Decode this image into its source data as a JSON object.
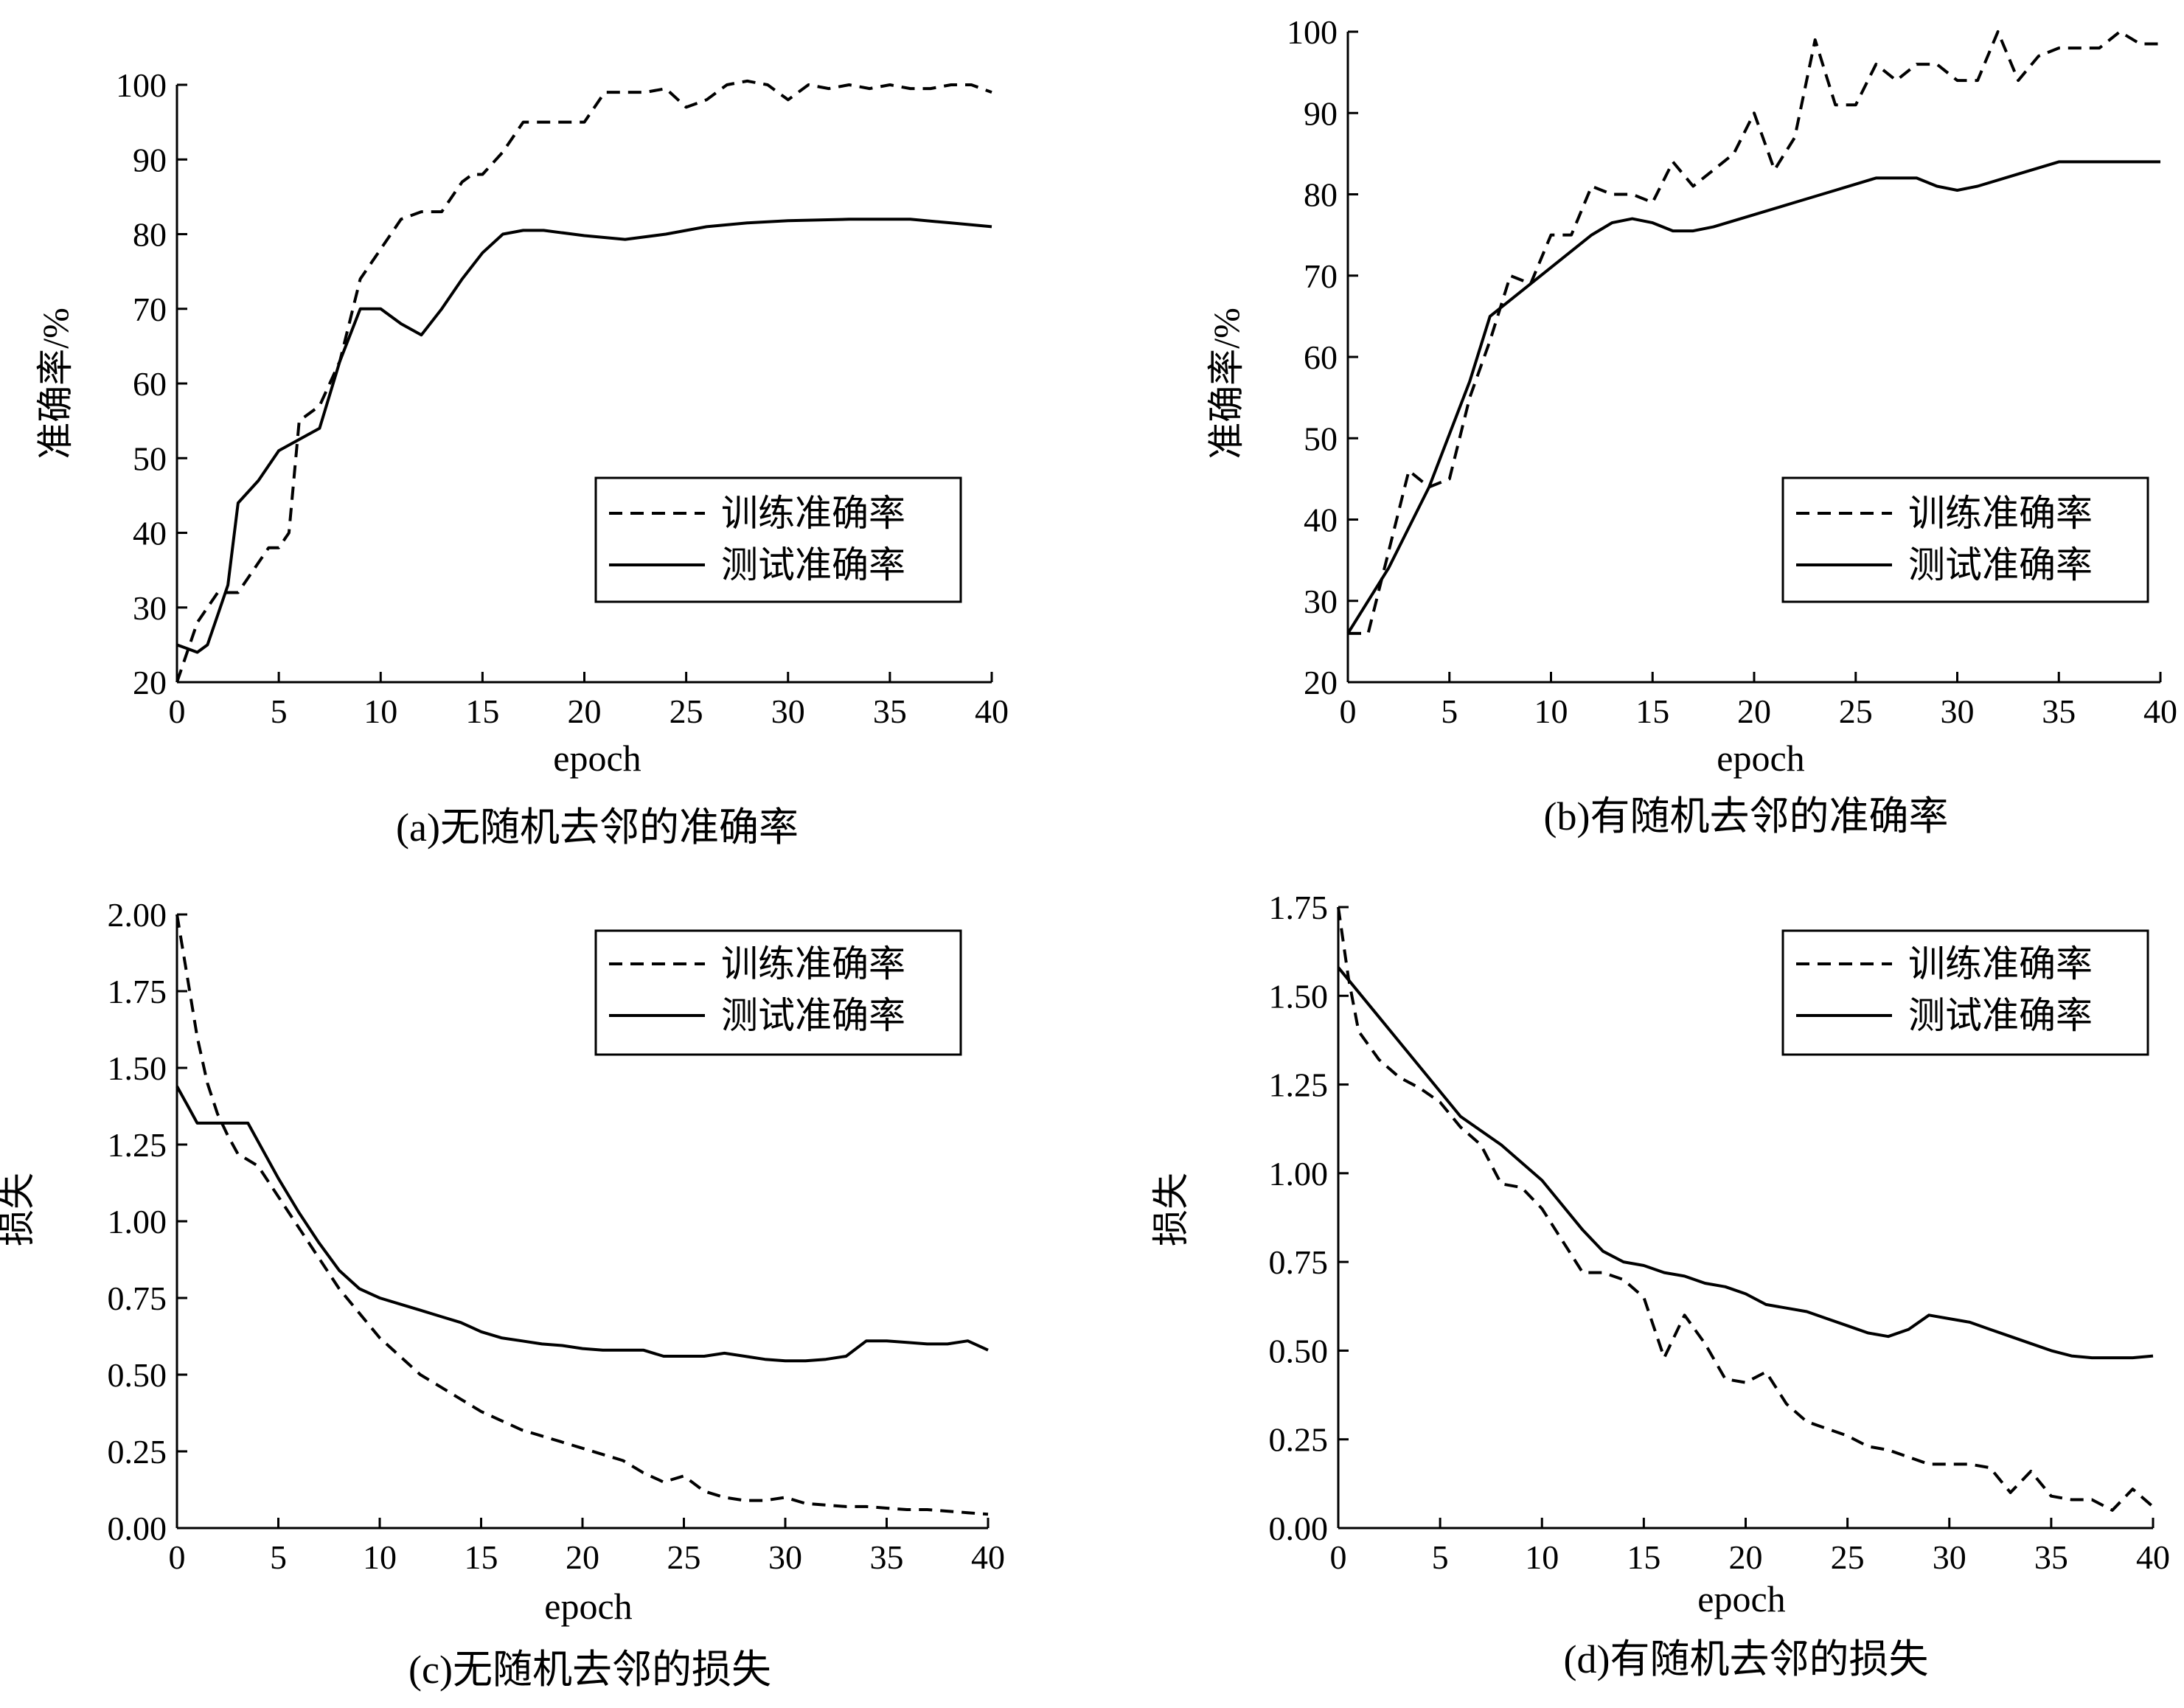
{
  "chart_data": [
    {
      "type": "line",
      "caption": "(a)无随机去邻的准确率",
      "xlabel": "epoch",
      "ylabel": "准确率/%",
      "xlim": [
        0,
        40
      ],
      "ylim": [
        20,
        100
      ],
      "xticks": [
        "0",
        "5",
        "10",
        "15",
        "20",
        "25",
        "30",
        "35",
        "40"
      ],
      "yticks": [
        "20",
        "30",
        "40",
        "50",
        "60",
        "70",
        "80",
        "90",
        "100"
      ],
      "legend_position": "middle-right",
      "series": [
        {
          "name": "训练准确率",
          "style": "dashed",
          "x": [
            0,
            1,
            2,
            3,
            4,
            4.5,
            5,
            5.5,
            6,
            7,
            8,
            9,
            10,
            11,
            12,
            13,
            14,
            14.5,
            15,
            16,
            17,
            18,
            19,
            20,
            21,
            22,
            23,
            24,
            25,
            26,
            27,
            28,
            29,
            30,
            31,
            32,
            33,
            34,
            35,
            36,
            37,
            38,
            39,
            40
          ],
          "y": [
            20,
            28,
            32,
            32,
            36,
            38,
            38,
            40,
            55,
            57,
            63,
            74,
            78,
            82,
            83,
            83,
            87,
            88,
            88,
            91,
            95,
            95,
            95,
            95,
            99,
            99,
            99,
            99.5,
            97,
            98,
            100,
            100.5,
            100,
            98,
            100,
            99.5,
            100,
            99.5,
            100,
            99.5,
            99.5,
            100,
            100,
            99
          ]
        },
        {
          "name": "测试准确率",
          "style": "solid",
          "x": [
            0,
            0.5,
            1,
            1.5,
            2,
            2.5,
            3,
            4,
            5,
            6,
            7,
            8,
            9,
            10,
            11,
            12,
            13,
            14,
            15,
            16,
            17,
            18,
            20,
            22,
            24,
            26,
            28,
            30,
            33,
            36,
            38,
            40
          ],
          "y": [
            25,
            24.5,
            24,
            25,
            29,
            33,
            44,
            47,
            51,
            52.5,
            54,
            63,
            70,
            70,
            68,
            66.5,
            70,
            74,
            77.5,
            80,
            80.5,
            80.5,
            79.8,
            79.3,
            80,
            81,
            81.5,
            81.8,
            82,
            82,
            81.5,
            81
          ]
        }
      ]
    },
    {
      "type": "line",
      "caption": "(b)有随机去邻的准确率",
      "xlabel": "epoch",
      "ylabel": "准确率/%",
      "xlim": [
        0,
        40
      ],
      "ylim": [
        20,
        100
      ],
      "xticks": [
        "0",
        "5",
        "10",
        "15",
        "20",
        "25",
        "30",
        "35",
        "40"
      ],
      "yticks": [
        "20",
        "30",
        "40",
        "50",
        "60",
        "70",
        "80",
        "90",
        "100"
      ],
      "legend_position": "middle-right",
      "series": [
        {
          "name": "训练准确率",
          "style": "dashed",
          "x": [
            0,
            1,
            2,
            3,
            4,
            5,
            6,
            7,
            8,
            9,
            10,
            11,
            12,
            13,
            14,
            15,
            16,
            17,
            18,
            19,
            20,
            21,
            22,
            23,
            24,
            25,
            26,
            27,
            28,
            29,
            30,
            31,
            32,
            33,
            34,
            35,
            36,
            37,
            38,
            39,
            40
          ],
          "y": [
            26,
            26,
            36,
            46,
            44,
            45,
            55,
            62,
            70,
            69,
            75,
            75,
            81,
            80,
            80,
            79,
            84,
            81,
            83,
            85,
            90,
            83,
            87,
            99,
            91,
            91,
            96,
            94,
            96,
            96,
            94,
            94,
            100,
            94,
            97,
            98,
            98,
            98,
            100,
            98.5,
            98.5
          ]
        },
        {
          "name": "测试准确率",
          "style": "solid",
          "x": [
            0,
            2,
            4,
            6,
            7,
            8,
            10,
            12,
            13,
            14,
            15,
            16,
            17,
            18,
            20,
            22,
            24,
            26,
            27,
            28,
            29,
            30,
            31,
            33,
            35,
            36,
            38,
            40
          ],
          "y": [
            26,
            34,
            44,
            57,
            65,
            67,
            71,
            75,
            76.5,
            77,
            76.5,
            75.5,
            75.5,
            76,
            77.5,
            79,
            80.5,
            82,
            82,
            82,
            81,
            80.5,
            81,
            82.5,
            84,
            84,
            84,
            84
          ]
        }
      ]
    },
    {
      "type": "line",
      "caption": "(c)无随机去邻的损失",
      "xlabel": "epoch",
      "ylabel": "损失",
      "xlim": [
        0,
        40
      ],
      "ylim": [
        0,
        2.0
      ],
      "xticks": [
        "0",
        "5",
        "10",
        "15",
        "20",
        "25",
        "30",
        "35",
        "40"
      ],
      "yticks": [
        "0.00",
        "0.25",
        "0.50",
        "0.75",
        "1.00",
        "1.25",
        "1.50",
        "1.75",
        "2.00"
      ],
      "legend_position": "top-right",
      "series": [
        {
          "name": "训练准确率",
          "style": "dashed",
          "x": [
            0,
            0.5,
            1,
            1.5,
            2,
            2.5,
            3,
            4,
            5,
            6,
            7,
            8,
            9,
            10,
            11,
            12,
            13,
            14,
            15,
            16,
            17,
            18,
            19,
            20,
            21,
            22,
            23,
            24,
            25,
            26,
            27,
            28,
            29,
            30,
            31,
            32,
            33,
            34,
            35,
            36,
            37,
            38,
            39,
            40
          ],
          "y": [
            2.0,
            1.8,
            1.6,
            1.45,
            1.35,
            1.28,
            1.22,
            1.18,
            1.08,
            0.98,
            0.88,
            0.78,
            0.7,
            0.62,
            0.56,
            0.5,
            0.46,
            0.42,
            0.38,
            0.35,
            0.32,
            0.3,
            0.28,
            0.26,
            0.24,
            0.22,
            0.18,
            0.15,
            0.17,
            0.12,
            0.1,
            0.09,
            0.09,
            0.1,
            0.08,
            0.075,
            0.07,
            0.07,
            0.065,
            0.06,
            0.06,
            0.055,
            0.05,
            0.045
          ]
        },
        {
          "name": "测试准确率",
          "style": "solid",
          "x": [
            0,
            0.5,
            1,
            2,
            3,
            3.5,
            4,
            5,
            6,
            7,
            8,
            9,
            10,
            11,
            12,
            13,
            14,
            15,
            16,
            17,
            18,
            19,
            20,
            21,
            22,
            23,
            24,
            25,
            26,
            27,
            28,
            29,
            30,
            31,
            32,
            33,
            34,
            35,
            36,
            37,
            38,
            39,
            40
          ],
          "y": [
            1.44,
            1.38,
            1.32,
            1.32,
            1.32,
            1.32,
            1.26,
            1.14,
            1.03,
            0.93,
            0.84,
            0.78,
            0.75,
            0.73,
            0.71,
            0.69,
            0.67,
            0.64,
            0.62,
            0.61,
            0.6,
            0.595,
            0.585,
            0.58,
            0.58,
            0.58,
            0.56,
            0.56,
            0.56,
            0.57,
            0.56,
            0.55,
            0.545,
            0.545,
            0.55,
            0.56,
            0.61,
            0.61,
            0.605,
            0.6,
            0.6,
            0.61,
            0.58
          ]
        }
      ]
    },
    {
      "type": "line",
      "caption": "(d)有随机去邻的损失",
      "xlabel": "epoch",
      "ylabel": "损失",
      "xlim": [
        0,
        40
      ],
      "ylim": [
        0,
        1.75
      ],
      "xticks": [
        "0",
        "5",
        "10",
        "15",
        "20",
        "25",
        "30",
        "35",
        "40"
      ],
      "yticks": [
        "0.00",
        "0.25",
        "0.50",
        "0.75",
        "1.00",
        "1.25",
        "1.50",
        "1.75"
      ],
      "legend_position": "top-right",
      "series": [
        {
          "name": "训练准确率",
          "style": "dashed",
          "x": [
            0,
            0.5,
            1,
            2,
            3,
            4,
            5,
            6,
            7,
            8,
            9,
            10,
            11,
            12,
            13,
            14,
            15,
            16,
            17,
            18,
            19,
            20,
            21,
            22,
            23,
            24,
            25,
            26,
            27,
            28,
            29,
            30,
            31,
            32,
            33,
            34,
            35,
            36,
            37,
            38,
            39,
            40
          ],
          "y": [
            1.75,
            1.55,
            1.4,
            1.32,
            1.27,
            1.24,
            1.2,
            1.13,
            1.08,
            0.97,
            0.96,
            0.9,
            0.81,
            0.72,
            0.72,
            0.7,
            0.65,
            0.48,
            0.6,
            0.52,
            0.42,
            0.41,
            0.44,
            0.35,
            0.3,
            0.28,
            0.26,
            0.23,
            0.22,
            0.2,
            0.18,
            0.18,
            0.18,
            0.17,
            0.1,
            0.16,
            0.09,
            0.08,
            0.08,
            0.05,
            0.11,
            0.06
          ]
        },
        {
          "name": "测试准确率",
          "style": "solid",
          "x": [
            0,
            2,
            4,
            6,
            8,
            10,
            12,
            13,
            14,
            15,
            16,
            17,
            18,
            19,
            20,
            21,
            22,
            23,
            24,
            25,
            26,
            27,
            28,
            29,
            30,
            31,
            32,
            33,
            34,
            35,
            36,
            37,
            38,
            39,
            40
          ],
          "y": [
            1.58,
            1.44,
            1.3,
            1.16,
            1.08,
            0.98,
            0.84,
            0.78,
            0.75,
            0.74,
            0.72,
            0.71,
            0.69,
            0.68,
            0.66,
            0.63,
            0.62,
            0.61,
            0.59,
            0.57,
            0.55,
            0.54,
            0.56,
            0.6,
            0.59,
            0.58,
            0.56,
            0.54,
            0.52,
            0.5,
            0.485,
            0.48,
            0.48,
            0.48,
            0.485
          ]
        }
      ]
    }
  ]
}
